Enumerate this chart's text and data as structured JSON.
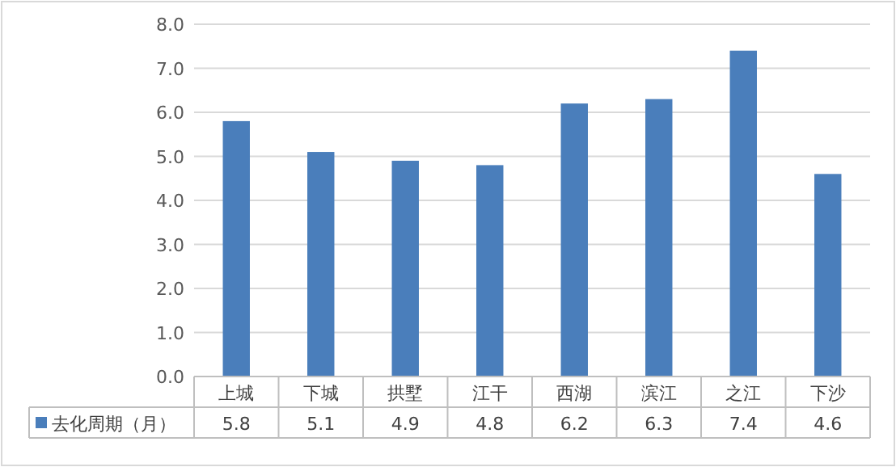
{
  "chart_data": {
    "type": "bar",
    "categories": [
      "上城",
      "下城",
      "拱墅",
      "江干",
      "西湖",
      "滨江",
      "之江",
      "下沙"
    ],
    "series": [
      {
        "name": "去化周期（月）",
        "color": "#4a7ebb",
        "values": [
          5.8,
          5.1,
          4.9,
          4.8,
          6.2,
          6.3,
          7.4,
          4.6
        ]
      }
    ],
    "ylim": [
      0,
      8
    ],
    "yticks": [
      {
        "value": 0,
        "label": "0.0"
      },
      {
        "value": 1,
        "label": "1.0"
      },
      {
        "value": 2,
        "label": "2.0"
      },
      {
        "value": 3,
        "label": "3.0"
      },
      {
        "value": 4,
        "label": "4.0"
      },
      {
        "value": 5,
        "label": "5.0"
      },
      {
        "value": 6,
        "label": "6.0"
      },
      {
        "value": 7,
        "label": "7.0"
      },
      {
        "value": 8,
        "label": "8.0"
      }
    ],
    "grid": "y",
    "data_labels": true,
    "legend": "bottom left"
  }
}
